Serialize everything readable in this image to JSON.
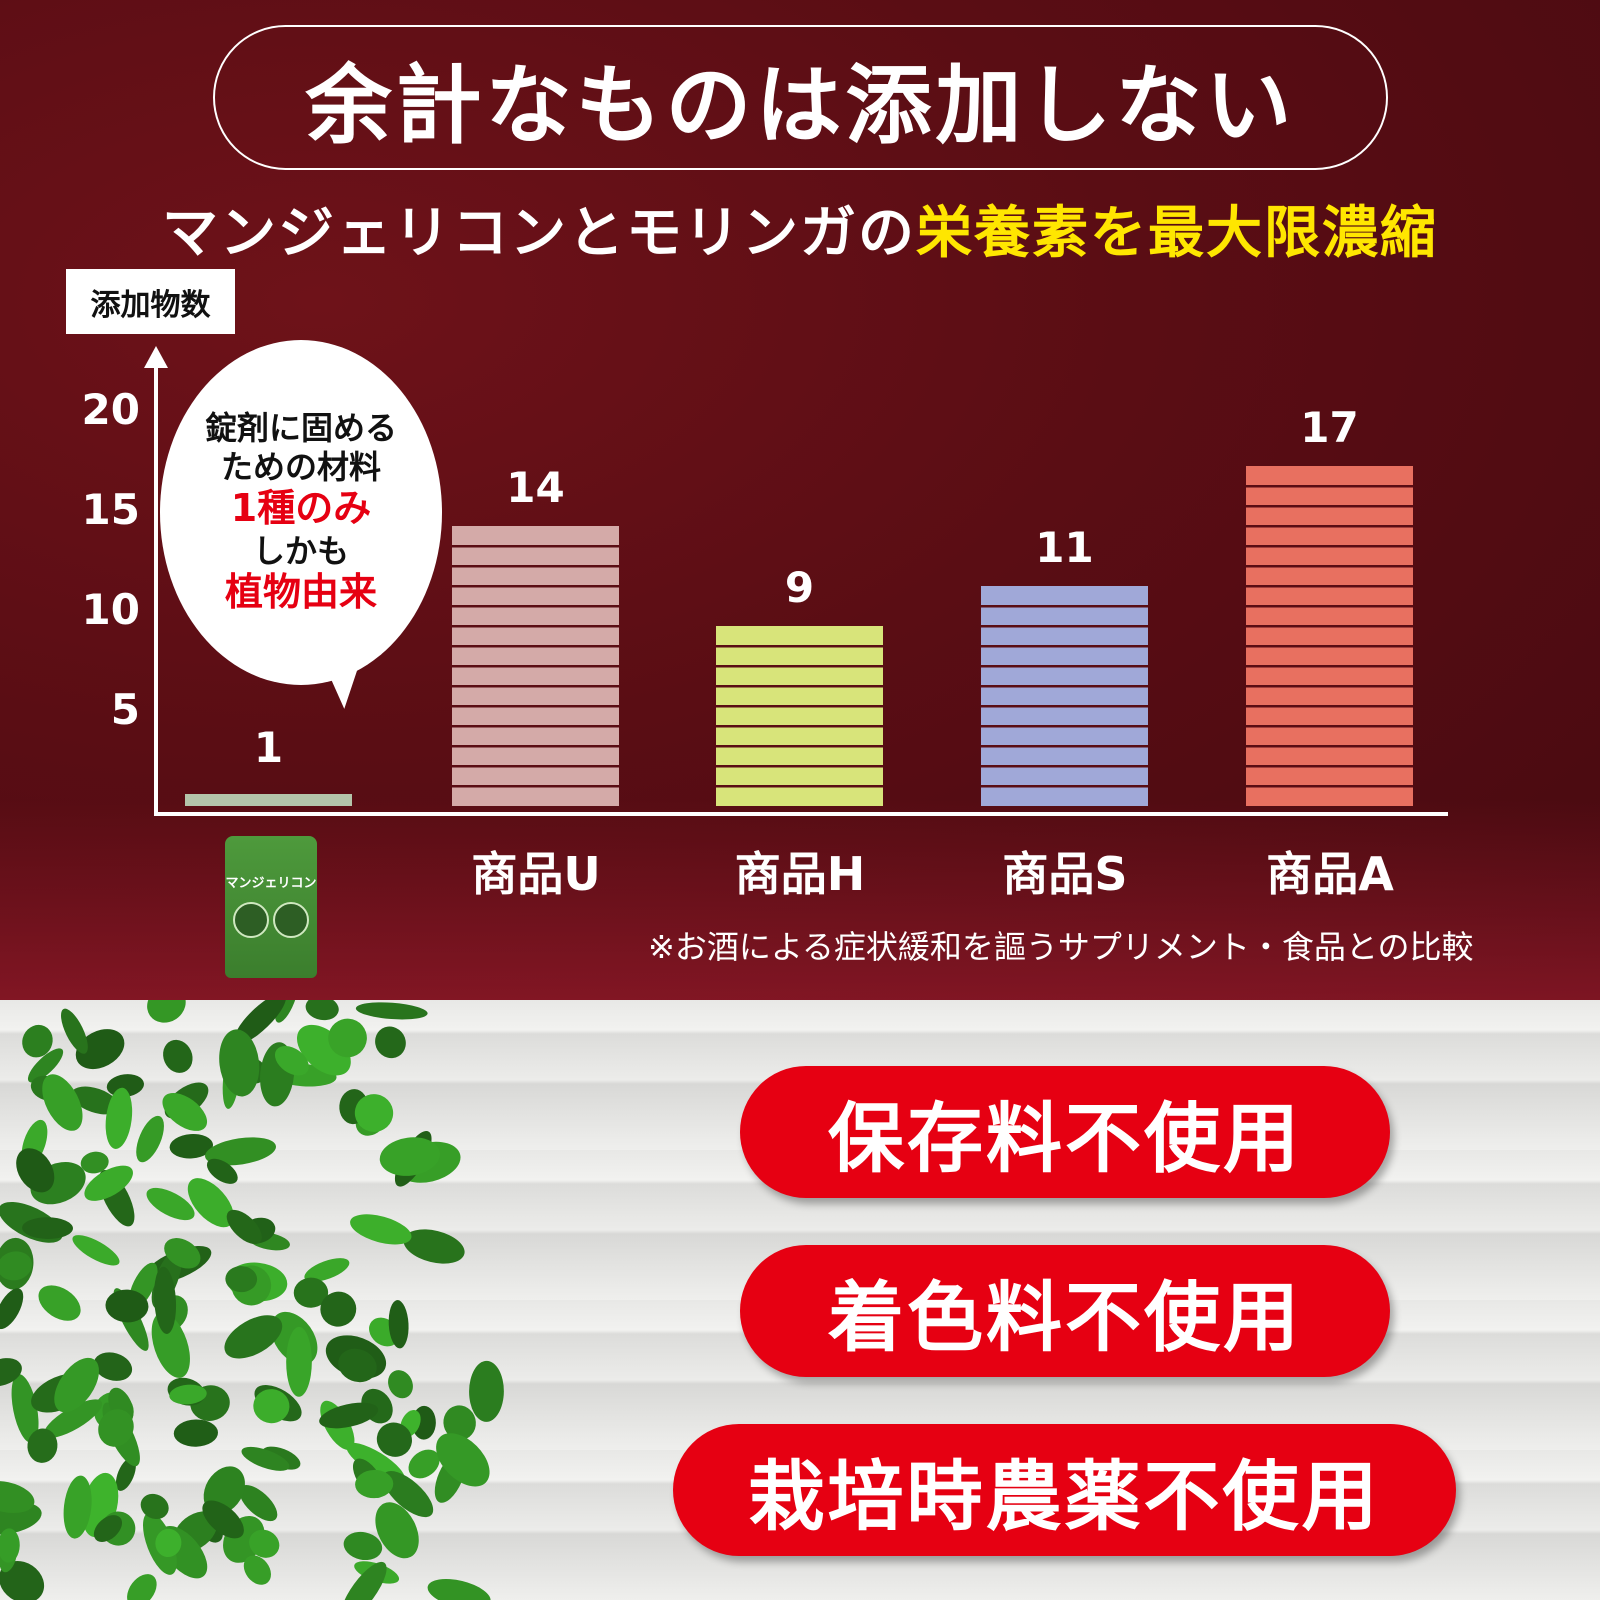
{
  "header": {
    "title": "余計なものは添加しない",
    "subtitle_plain": "マンジェリコンとモリンガの",
    "subtitle_highlight": "栄養素を最大限濃縮"
  },
  "chart_data": {
    "type": "bar",
    "ylabel": "添加物数",
    "categories": [
      "",
      "商品U",
      "商品H",
      "商品S",
      "商品A"
    ],
    "values": [
      1,
      14,
      9,
      11,
      17
    ],
    "data_labels": [
      "1",
      "14",
      "9",
      "11",
      "17"
    ],
    "yticks": [
      "5",
      "10",
      "15",
      "20"
    ],
    "ylim": [
      0,
      20
    ],
    "colors": [
      "#b4c4aa",
      "#d4aaa8",
      "#d8e47a",
      "#a0a8d8",
      "#e87060"
    ],
    "grid": false
  },
  "callout": {
    "line1": "錠剤に固める",
    "line2": "ための材料",
    "line3": "1種のみ",
    "line4": "しかも",
    "line5": "植物由来"
  },
  "product": {
    "name": "マンジェリコン"
  },
  "note": "※お酒による症状緩和を謳うサプリメント・食品との比較",
  "badges": [
    "保存料不使用",
    "着色料不使用",
    "栽培時農薬不使用"
  ],
  "colors": {
    "background": "#5a0d14",
    "highlight": "#ffe600",
    "badge": "#e60012"
  }
}
